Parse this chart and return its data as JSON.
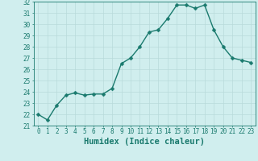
{
  "x": [
    0,
    1,
    2,
    3,
    4,
    5,
    6,
    7,
    8,
    9,
    10,
    11,
    12,
    13,
    14,
    15,
    16,
    17,
    18,
    19,
    20,
    21,
    22,
    23
  ],
  "y": [
    22.0,
    21.5,
    22.8,
    23.7,
    23.9,
    23.7,
    23.8,
    23.8,
    24.3,
    26.5,
    27.0,
    28.0,
    29.3,
    29.5,
    30.5,
    31.7,
    31.7,
    31.4,
    31.7,
    29.5,
    28.0,
    27.0,
    26.8,
    26.6
  ],
  "line_color": "#1a7a6e",
  "marker_color": "#1a7a6e",
  "bg_color": "#d0eeee",
  "grid_color": "#b8dada",
  "xlabel": "Humidex (Indice chaleur)",
  "ylim": [
    21,
    32
  ],
  "xlim_min": -0.5,
  "xlim_max": 23.5,
  "yticks": [
    21,
    22,
    23,
    24,
    25,
    26,
    27,
    28,
    29,
    30,
    31,
    32
  ],
  "xticks": [
    0,
    1,
    2,
    3,
    4,
    5,
    6,
    7,
    8,
    9,
    10,
    11,
    12,
    13,
    14,
    15,
    16,
    17,
    18,
    19,
    20,
    21,
    22,
    23
  ],
  "tick_label_fontsize": 5.5,
  "xlabel_fontsize": 7.5,
  "line_width": 1.0,
  "marker_size": 2.5
}
